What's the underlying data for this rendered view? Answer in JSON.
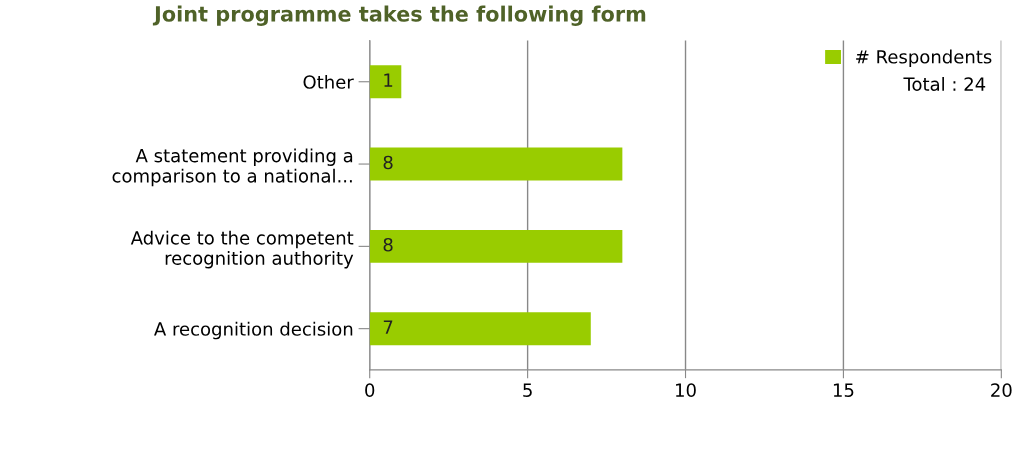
{
  "chart_data": {
    "type": "bar",
    "orientation": "horizontal",
    "title": "Joint programme takes the following form",
    "categories": [
      "Other",
      "A statement providing a\ncomparison to a national...",
      "Advice to the competent\nrecognition authority",
      "A recognition decision"
    ],
    "series": [
      {
        "name": "# Respondents",
        "color": "#99cc00",
        "values": [
          1,
          8,
          8,
          7
        ]
      }
    ],
    "xlim": [
      0,
      20
    ],
    "xticks": [
      0,
      5,
      10,
      15,
      20
    ],
    "grid": "x",
    "legend": "top right",
    "data_labels": true,
    "annotations": [
      "Total : 24"
    ]
  }
}
